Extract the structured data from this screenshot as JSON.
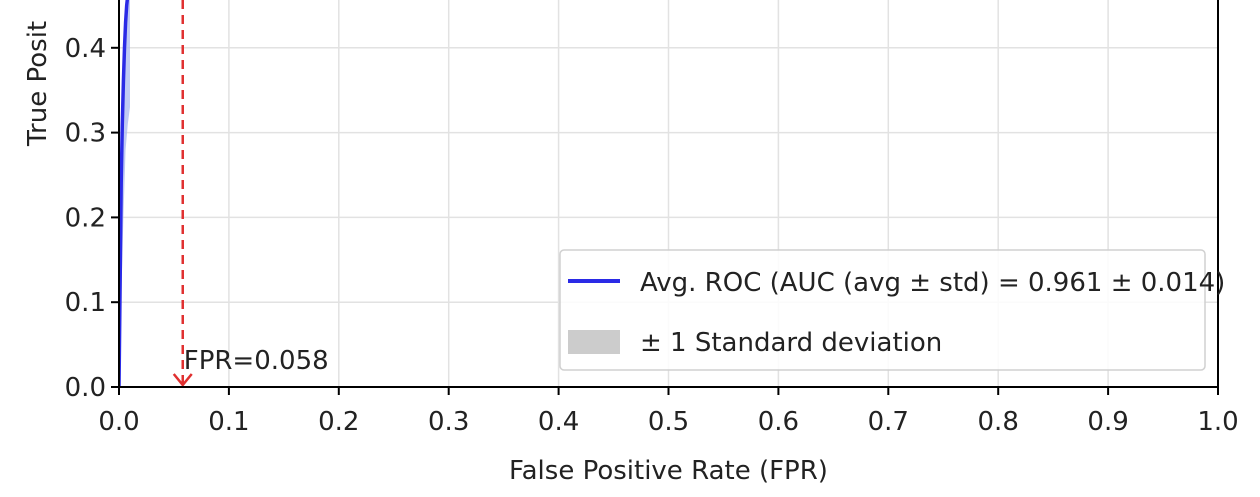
{
  "chart_data": {
    "type": "line",
    "xlabel": "False Positive Rate (FPR)",
    "ylabel": "True Posit",
    "xlim": [
      0.0,
      1.0
    ],
    "ylim_visible": [
      0.0,
      0.46
    ],
    "x_ticks": [
      "0.0",
      "0.1",
      "0.2",
      "0.3",
      "0.4",
      "0.5",
      "0.6",
      "0.7",
      "0.8",
      "0.9",
      "1.0"
    ],
    "y_ticks": [
      "0.0",
      "0.1",
      "0.2",
      "0.3",
      "0.4"
    ],
    "grid": true,
    "series": [
      {
        "name": "Avg. ROC (AUC (avg ± std) = 0.961 ± 0.014)",
        "color": "#2a2ae6",
        "x": [
          0.0,
          0.001,
          0.002,
          0.003,
          0.004,
          0.005,
          0.006,
          0.007,
          0.008,
          0.009
        ],
        "y": [
          0.0,
          0.12,
          0.24,
          0.31,
          0.36,
          0.4,
          0.43,
          0.45,
          0.47,
          0.49
        ]
      }
    ],
    "std_band": {
      "name": "± 1 Standard deviation",
      "color": "#cccccc",
      "x": [
        0.0,
        0.002,
        0.004,
        0.006,
        0.008,
        0.01
      ],
      "upper": [
        0.0,
        0.3,
        0.4,
        0.46,
        0.5,
        0.52
      ],
      "lower": [
        0.0,
        0.1,
        0.2,
        0.28,
        0.31,
        0.33
      ]
    },
    "threshold_line": {
      "x": 0.058,
      "color": "#e03030",
      "style": "dashed",
      "label": "FPR=0.058"
    },
    "legend": {
      "placement": "lower-right",
      "entries": [
        {
          "label": "Avg. ROC (AUC (avg ± std) = 0.961 ± 0.014)",
          "kind": "line",
          "color": "#2a2ae6"
        },
        {
          "label": "± 1 Standard deviation",
          "kind": "patch",
          "color": "#cccccc"
        }
      ]
    }
  }
}
